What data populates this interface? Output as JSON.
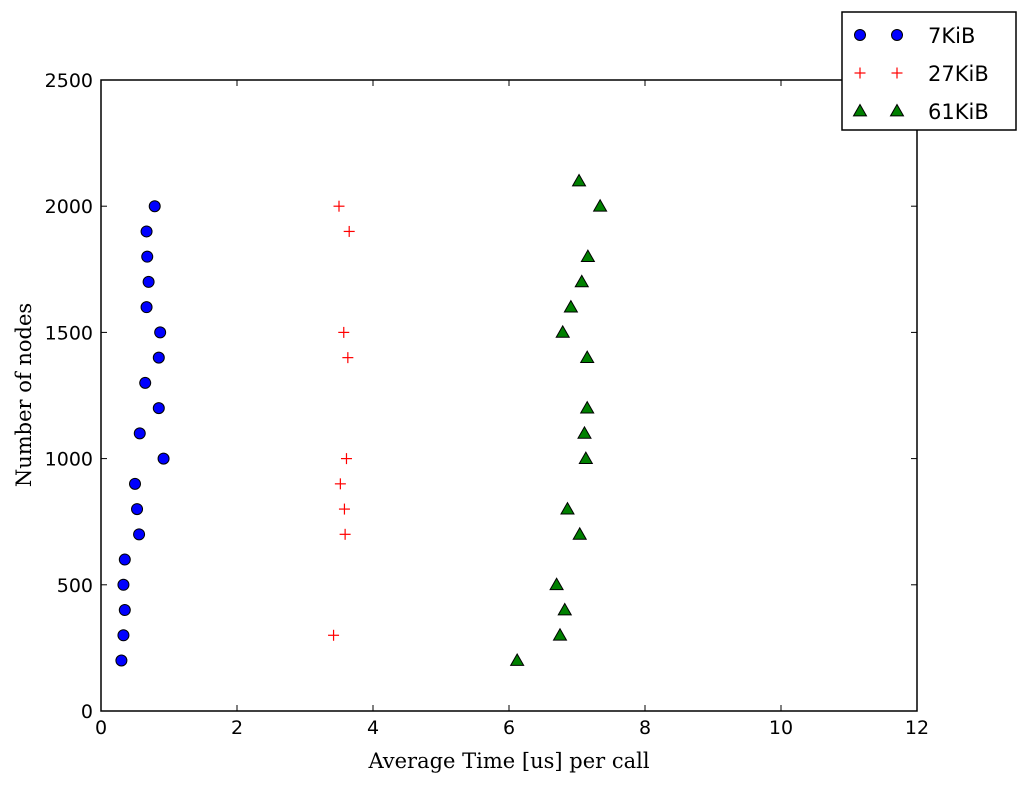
{
  "chart_data": {
    "type": "scatter",
    "title": "",
    "xlabel": "Average Time [us] per call",
    "ylabel": "Number of nodes",
    "xlim": [
      0,
      12
    ],
    "ylim": [
      0,
      2500
    ],
    "xticks": [
      0,
      2,
      4,
      6,
      8,
      10,
      12
    ],
    "yticks": [
      0,
      500,
      1000,
      1500,
      2000,
      2500
    ],
    "grid": false,
    "legend_position": "top-right",
    "series": [
      {
        "name": "7KiB",
        "marker": "circle",
        "color": "#0000ff",
        "points": [
          [
            0.3,
            200
          ],
          [
            0.33,
            300
          ],
          [
            0.35,
            400
          ],
          [
            0.33,
            500
          ],
          [
            0.35,
            600
          ],
          [
            0.56,
            700
          ],
          [
            0.53,
            800
          ],
          [
            0.5,
            900
          ],
          [
            0.92,
            1000
          ],
          [
            0.57,
            1100
          ],
          [
            0.85,
            1200
          ],
          [
            0.65,
            1300
          ],
          [
            0.85,
            1400
          ],
          [
            0.87,
            1500
          ],
          [
            0.67,
            1600
          ],
          [
            0.7,
            1700
          ],
          [
            0.68,
            1800
          ],
          [
            0.67,
            1900
          ],
          [
            0.79,
            2000
          ]
        ]
      },
      {
        "name": "27KiB",
        "marker": "plus",
        "color": "#ff0000",
        "points": [
          [
            3.42,
            300
          ],
          [
            3.59,
            700
          ],
          [
            3.58,
            800
          ],
          [
            3.52,
            900
          ],
          [
            3.61,
            1000
          ],
          [
            3.63,
            1400
          ],
          [
            3.57,
            1500
          ],
          [
            3.65,
            1900
          ],
          [
            3.5,
            2000
          ]
        ]
      },
      {
        "name": "61KiB",
        "marker": "triangle",
        "color": "#008000",
        "points": [
          [
            6.12,
            200
          ],
          [
            6.75,
            300
          ],
          [
            6.82,
            400
          ],
          [
            6.7,
            500
          ],
          [
            7.04,
            700
          ],
          [
            6.86,
            800
          ],
          [
            7.13,
            1000
          ],
          [
            7.11,
            1100
          ],
          [
            7.15,
            1200
          ],
          [
            7.15,
            1400
          ],
          [
            6.79,
            1500
          ],
          [
            6.91,
            1600
          ],
          [
            7.07,
            1700
          ],
          [
            7.16,
            1800
          ],
          [
            7.34,
            2000
          ],
          [
            7.03,
            2100
          ]
        ]
      }
    ]
  }
}
